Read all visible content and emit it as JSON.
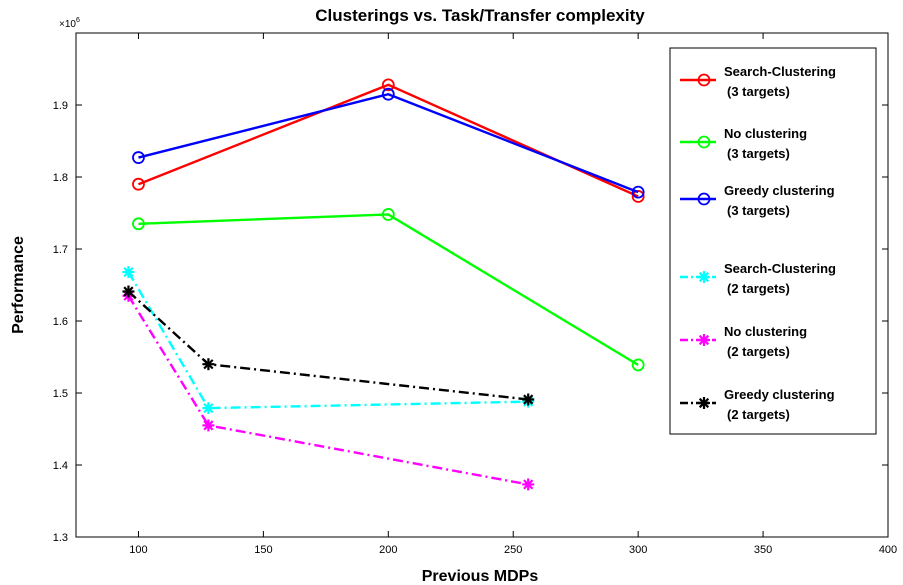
{
  "chart_data": {
    "type": "line",
    "title": "Clusterings vs. Task/Transfer complexity",
    "xlabel": "Previous MDPs",
    "ylabel": "Performance",
    "y_multiplier": "×10",
    "y_exponent": "6",
    "xlim": [
      75,
      400
    ],
    "ylim": [
      1.3,
      2.0
    ],
    "xticks": [
      "100",
      "150",
      "200",
      "250",
      "300",
      "350",
      "400"
    ],
    "yticks": [
      "1.3",
      "1.4",
      "1.5",
      "1.6",
      "1.7",
      "1.8",
      "1.9"
    ],
    "xtick_values": [
      100,
      150,
      200,
      250,
      300,
      350,
      400
    ],
    "ytick_values": [
      1.3,
      1.4,
      1.5,
      1.6,
      1.7,
      1.8,
      1.9
    ],
    "legend_position": "top-right",
    "grid": false,
    "series": [
      {
        "name": "Search-Clustering",
        "name2": "(3 targets)",
        "color": "#ff0000",
        "marker": "circle",
        "dash": "solid",
        "x": [
          100,
          200,
          300
        ],
        "y": [
          1.79,
          1.928,
          1.773
        ]
      },
      {
        "name": "No clustering",
        "name2": "(3 targets)",
        "color": "#00ff00",
        "marker": "circle",
        "dash": "solid",
        "x": [
          100,
          200,
          300
        ],
        "y": [
          1.735,
          1.748,
          1.539
        ]
      },
      {
        "name": "Greedy clustering",
        "name2": "(3 targets)",
        "color": "#0000ff",
        "marker": "circle",
        "dash": "solid",
        "x": [
          100,
          200,
          300
        ],
        "y": [
          1.827,
          1.915,
          1.779
        ]
      },
      {
        "name": "Search-Clustering",
        "name2": "(2 targets)",
        "color": "#00ffff",
        "marker": "star",
        "dash": "dashdot",
        "x": [
          96,
          128,
          256
        ],
        "y": [
          1.668,
          1.479,
          1.488
        ]
      },
      {
        "name": "No clustering",
        "name2": "(2 targets)",
        "color": "#ff00ff",
        "marker": "star",
        "dash": "dashdot",
        "x": [
          96,
          128,
          256
        ],
        "y": [
          1.635,
          1.455,
          1.373
        ]
      },
      {
        "name": "Greedy clustering",
        "name2": "(2 targets)",
        "color": "#000000",
        "marker": "star",
        "dash": "dashdot",
        "x": [
          96,
          128,
          256
        ],
        "y": [
          1.641,
          1.54,
          1.491
        ]
      }
    ]
  }
}
